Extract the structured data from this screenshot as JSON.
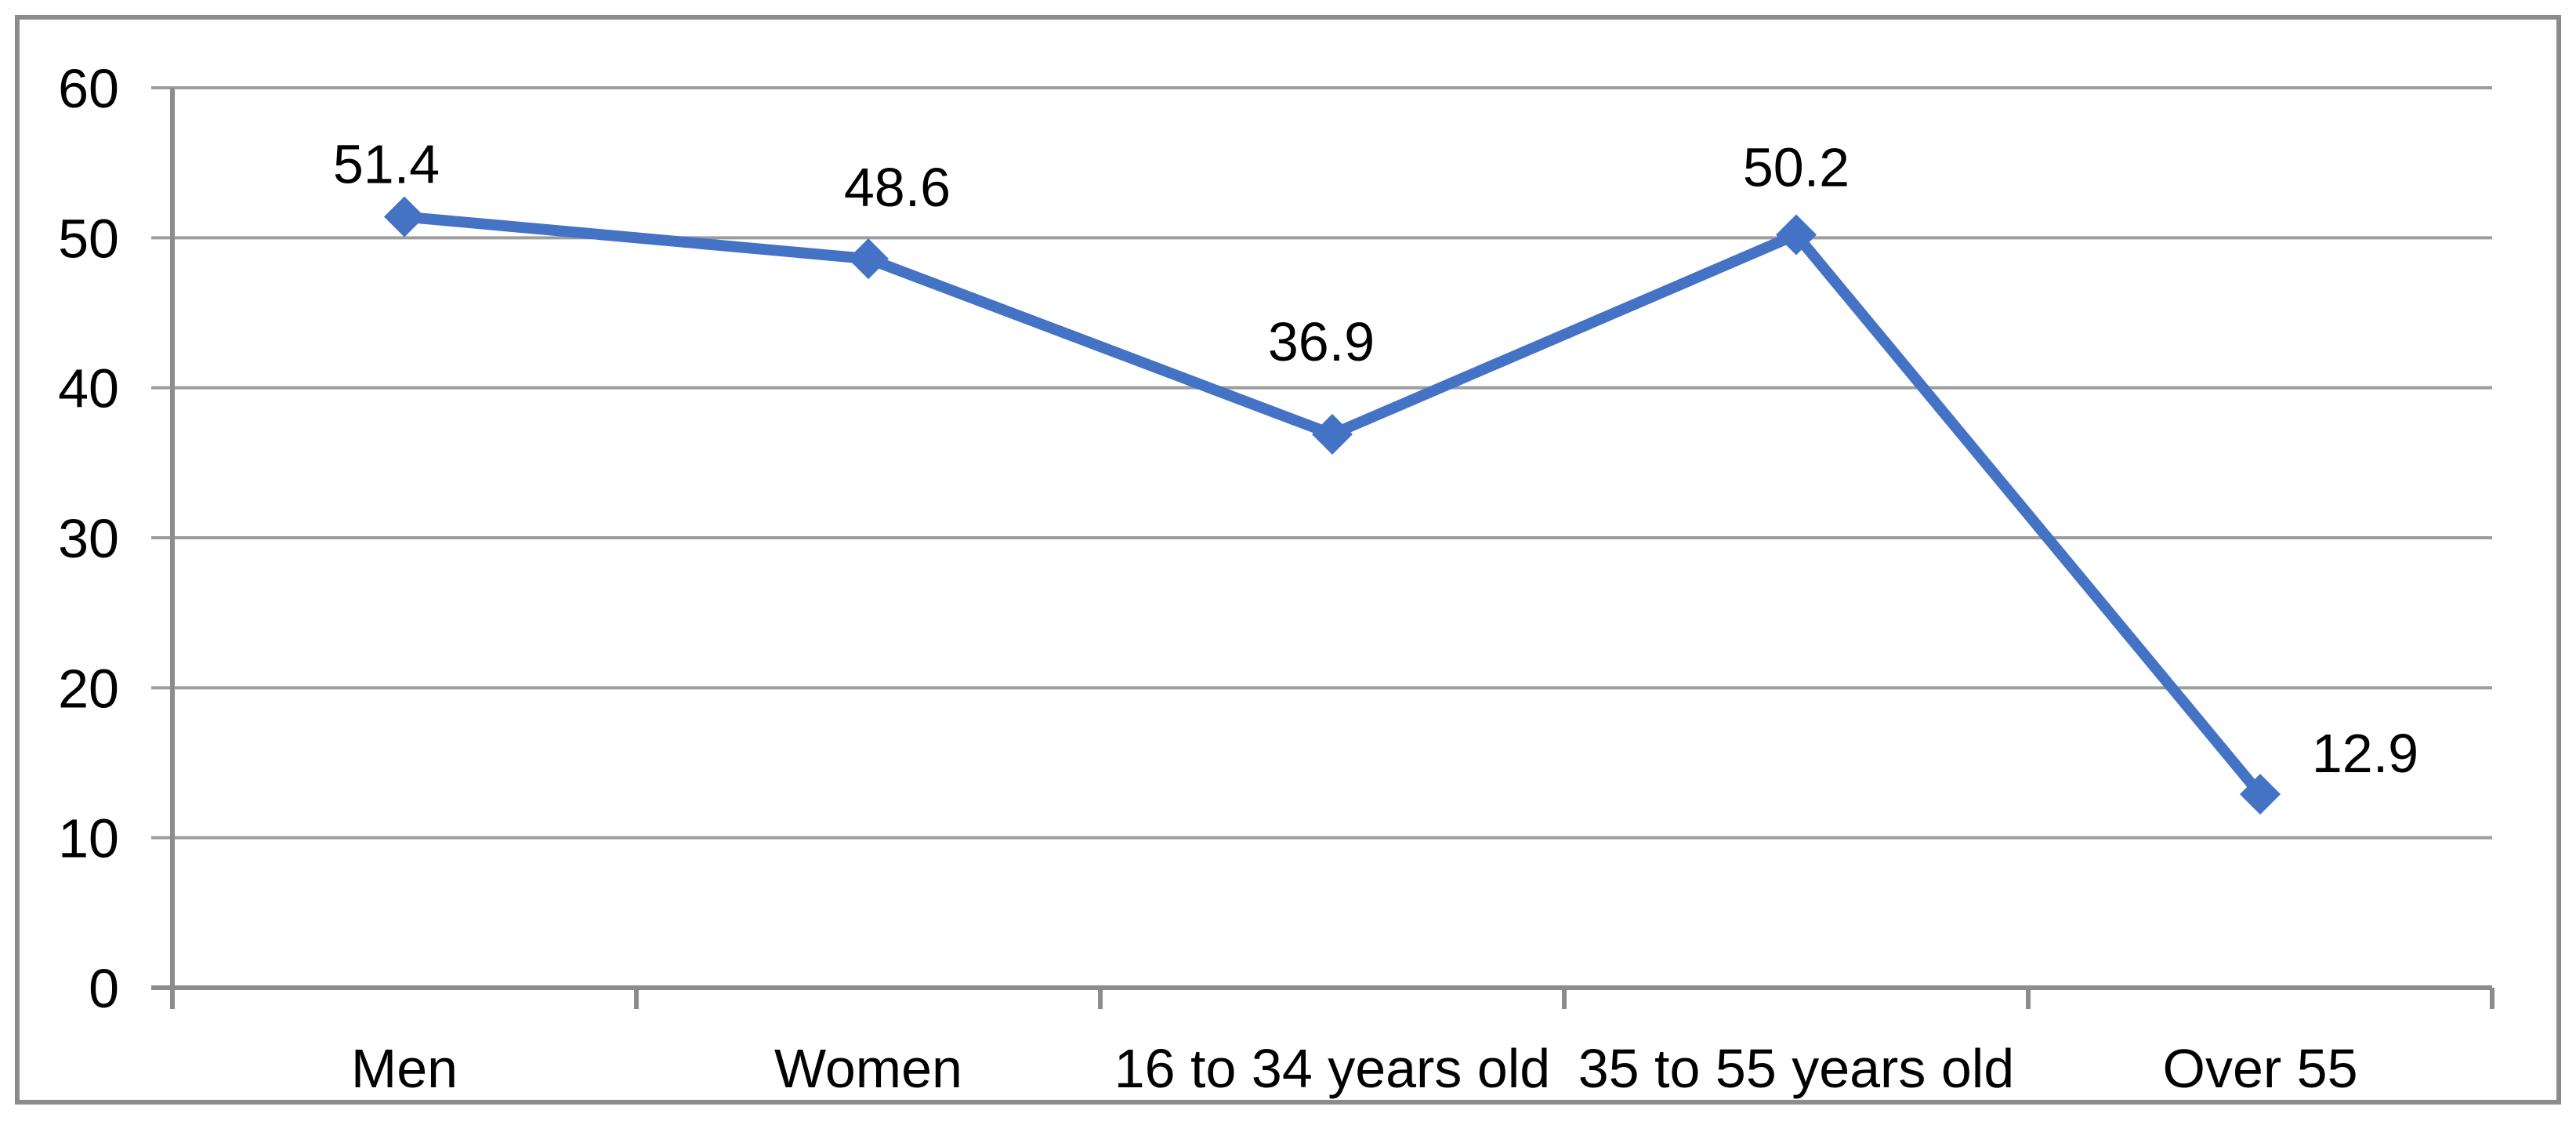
{
  "chart_data": {
    "type": "line",
    "title": "",
    "xlabel": "",
    "ylabel": "",
    "categories": [
      "Men",
      "Women",
      "16 to 34 years old",
      "35 to 55 years old",
      "Over 55"
    ],
    "values": [
      51.4,
      48.6,
      36.9,
      50.2,
      12.9
    ],
    "data_labels": [
      "51.4",
      "48.6",
      "36.9",
      "50.2",
      "12.9"
    ],
    "ylim": [
      0,
      60
    ],
    "yticks": [
      0,
      10,
      20,
      30,
      40,
      50,
      60
    ],
    "ytick_labels": [
      "0",
      "10",
      "20",
      "30",
      "40",
      "50",
      "60"
    ],
    "grid": "horizontal-major",
    "legend": "none",
    "marker": "diamond",
    "colors": {
      "series": "#4472C4",
      "gridline": "#9D9D9D",
      "axis": "#8C8C8C",
      "frame_border": "#8C8C8C",
      "text": "#000000",
      "background": "#FFFFFF"
    }
  }
}
